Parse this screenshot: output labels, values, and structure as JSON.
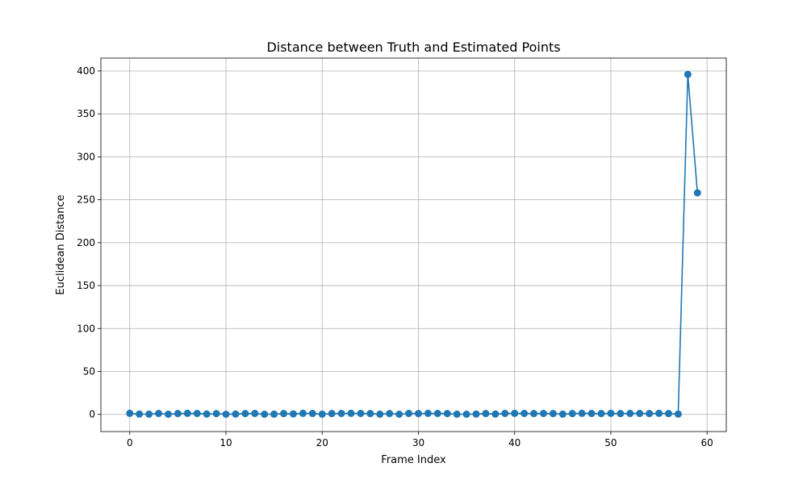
{
  "chart_data": {
    "type": "line",
    "title": "Distance between Truth and Estimated Points",
    "xlabel": "Frame Index",
    "ylabel": "Euclidean Distance",
    "xlim": [
      -3,
      62
    ],
    "ylim": [
      -20,
      415
    ],
    "xticks": [
      0,
      10,
      20,
      30,
      40,
      50,
      60
    ],
    "yticks": [
      0,
      50,
      100,
      150,
      200,
      250,
      300,
      350,
      400
    ],
    "grid": true,
    "marker": "circle",
    "color": "#1f77b4",
    "series": [
      {
        "x": [
          0,
          1,
          2,
          3,
          4,
          5,
          6,
          7,
          8,
          9,
          10,
          11,
          12,
          13,
          14,
          15,
          16,
          17,
          18,
          19,
          20,
          21,
          22,
          23,
          24,
          25,
          26,
          27,
          28,
          29,
          30,
          31,
          32,
          33,
          34,
          35,
          36,
          37,
          38,
          39,
          40,
          41,
          42,
          43,
          44,
          45,
          46,
          47,
          48,
          49,
          50,
          51,
          52,
          53,
          54,
          55,
          56,
          57,
          58,
          59
        ],
        "values": [
          1.2,
          0.4,
          0.3,
          1.1,
          0.2,
          1.0,
          1.2,
          1.1,
          0.4,
          0.9,
          0.2,
          0.4,
          1.0,
          1.1,
          0.2,
          0.3,
          1.0,
          0.6,
          1.2,
          1.1,
          0.3,
          1.0,
          1.1,
          1.2,
          1.1,
          1.0,
          0.3,
          1.0,
          0.2,
          1.1,
          1.0,
          1.2,
          1.1,
          1.0,
          0.3,
          0.2,
          0.4,
          1.0,
          0.4,
          1.1,
          1.2,
          1.1,
          1.0,
          1.1,
          1.0,
          0.3,
          1.0,
          1.2,
          1.1,
          1.0,
          1.2,
          1.0,
          1.1,
          1.1,
          1.0,
          1.2,
          1.0,
          0.4,
          396,
          258
        ]
      }
    ]
  }
}
